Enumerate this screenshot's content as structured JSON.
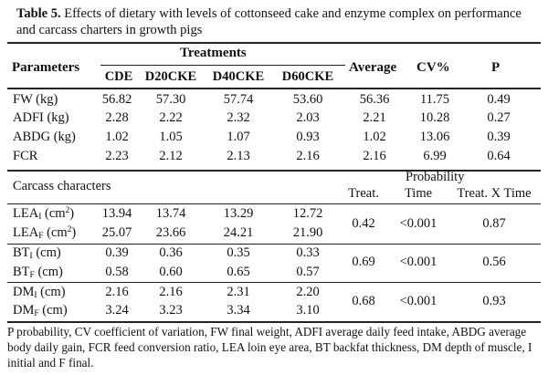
{
  "title": {
    "label": "Table 5.",
    "text": "Effects of dietary with levels of cottonseed cake and enzyme complex on performance and carcass charters in growth pigs"
  },
  "header": {
    "parameters": "Parameters",
    "treatments": "Treatments",
    "columns": [
      "CDE",
      "D20CKE",
      "D40CKE",
      "D60CKE"
    ],
    "average": "Average",
    "cv": "CV%",
    "p": "P"
  },
  "performance_rows": [
    {
      "label": "FW (kg)",
      "values": [
        "56.82",
        "57.30",
        "57.74",
        "53.60"
      ],
      "average": "56.36",
      "cv": "11.75",
      "p": "0.49"
    },
    {
      "label": "ADFI (kg)",
      "values": [
        "2.28",
        "2.22",
        "2.32",
        "2.03"
      ],
      "average": "2.21",
      "cv": "10.28",
      "p": "0.27"
    },
    {
      "label": "ABDG (kg)",
      "values": [
        "1.02",
        "1.05",
        "1.07",
        "0.93"
      ],
      "average": "1.02",
      "cv": "13.06",
      "p": "0.39"
    },
    {
      "label": "FCR",
      "values": [
        "2.23",
        "2.12",
        "2.13",
        "2.16"
      ],
      "average": "2.16",
      "cv": "6.99",
      "p": "0.64"
    }
  ],
  "carcass": {
    "heading": "Carcass characters",
    "probability": "Probability",
    "prob_columns": [
      "Treat.",
      "Time",
      "Treat. X Time"
    ]
  },
  "carcass_groups": [
    {
      "rows": [
        {
          "base": "LEA",
          "sub": "I",
          "unit": "(cm",
          "sup": "2",
          "close": ")",
          "values": [
            "13.94",
            "13.74",
            "13.29",
            "12.72"
          ]
        },
        {
          "base": "LEA",
          "sub": "F",
          "unit": "(cm",
          "sup": "2",
          "close": ")",
          "values": [
            "25.07",
            "23.66",
            "24.21",
            "21.90"
          ]
        }
      ],
      "treat": "0.42",
      "time": "<0.001",
      "interaction": "0.87"
    },
    {
      "rows": [
        {
          "base": "BT",
          "sub": "I",
          "unit": "(cm",
          "sup": "",
          "close": ")",
          "values": [
            "0.39",
            "0.36",
            "0.35",
            "0.33"
          ]
        },
        {
          "base": "BT",
          "sub": "F",
          "unit": "(cm",
          "sup": "",
          "close": ")",
          "values": [
            "0.58",
            "0.60",
            "0.65",
            "0.57"
          ]
        }
      ],
      "treat": "0.69",
      "time": "<0.001",
      "interaction": "0.56"
    },
    {
      "rows": [
        {
          "base": "DM",
          "sub": "I",
          "unit": "(cm",
          "sup": "",
          "close": ")",
          "values": [
            "2.16",
            "2.16",
            "2.31",
            "2.20"
          ]
        },
        {
          "base": "DM",
          "sub": "F",
          "unit": "(cm",
          "sup": "",
          "close": ")",
          "values": [
            "3.24",
            "3.23",
            "3.34",
            "3.10"
          ]
        }
      ],
      "treat": "0.68",
      "time": "<0.001",
      "interaction": "0.93"
    }
  ],
  "footnote": "P probability, CV coefficient of variation, FW final weight, ADFI average daily feed intake, ABDG average body daily gain, FCR feed conversion ratio, LEA loin eye area, BT backfat thickness, DM depth of muscle, I initial and F final."
}
